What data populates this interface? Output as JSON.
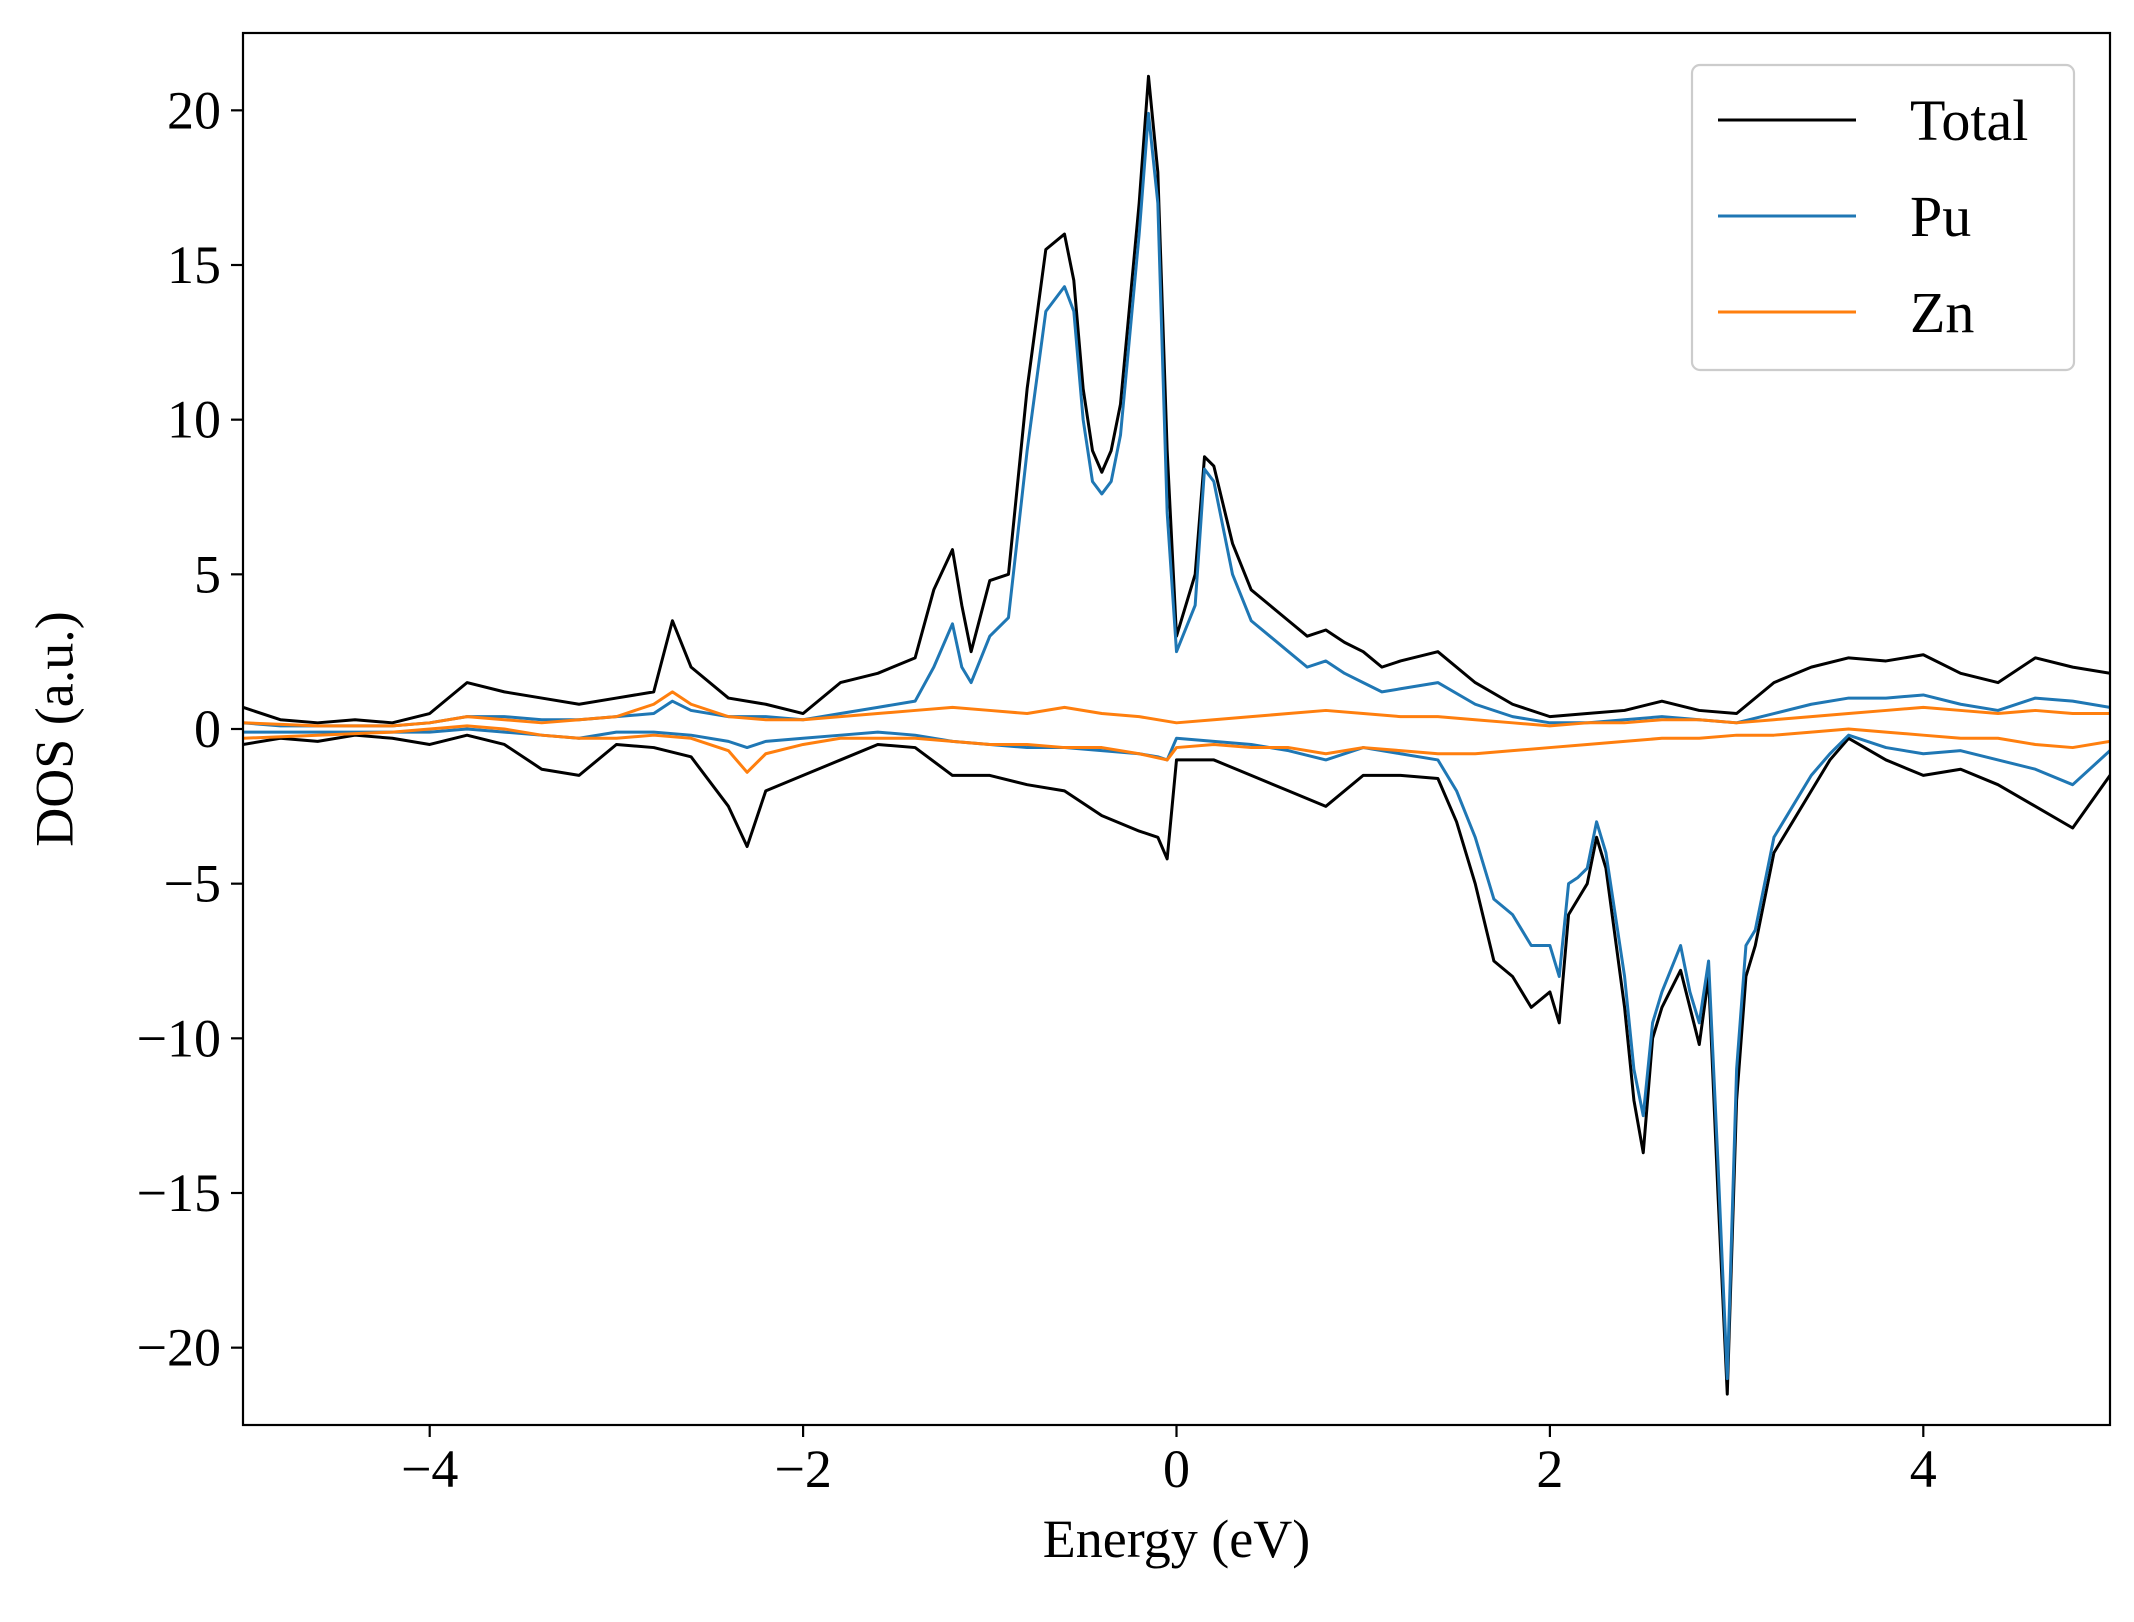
{
  "chart_data": {
    "type": "line",
    "title": "",
    "xlabel": "Energy (eV)",
    "ylabel": "DOS (a.u.)",
    "xlim": [
      -5,
      5
    ],
    "ylim": [
      -22.5,
      22.5
    ],
    "xticks": [
      -4,
      -2,
      0,
      2,
      4
    ],
    "xtick_labels": [
      "−4",
      "−2",
      "0",
      "2",
      "4"
    ],
    "yticks": [
      20,
      15,
      10,
      5,
      0,
      -5,
      -10,
      -15,
      -20
    ],
    "ytick_labels": [
      "20",
      "15",
      "10",
      "5",
      "0",
      "−5",
      "−10",
      "−15",
      "−20"
    ],
    "grid": false,
    "legend_position": "top-right",
    "series": [
      {
        "name": "Total",
        "color": "#000000",
        "up": {
          "x": [
            -5.0,
            -4.8,
            -4.6,
            -4.4,
            -4.2,
            -4.0,
            -3.8,
            -3.6,
            -3.4,
            -3.2,
            -3.0,
            -2.8,
            -2.7,
            -2.6,
            -2.4,
            -2.2,
            -2.0,
            -1.8,
            -1.6,
            -1.4,
            -1.3,
            -1.2,
            -1.15,
            -1.1,
            -1.0,
            -0.9,
            -0.8,
            -0.7,
            -0.6,
            -0.55,
            -0.5,
            -0.45,
            -0.4,
            -0.35,
            -0.3,
            -0.2,
            -0.15,
            -0.1,
            -0.05,
            0.0,
            0.1,
            0.15,
            0.2,
            0.3,
            0.4,
            0.5,
            0.6,
            0.7,
            0.8,
            0.9,
            1.0,
            1.1,
            1.2,
            1.4,
            1.6,
            1.8,
            2.0,
            2.2,
            2.4,
            2.6,
            2.8,
            3.0,
            3.2,
            3.4,
            3.6,
            3.8,
            4.0,
            4.2,
            4.4,
            4.6,
            4.8,
            5.0
          ],
          "y": [
            0.7,
            0.3,
            0.2,
            0.3,
            0.2,
            0.5,
            1.5,
            1.2,
            1.0,
            0.8,
            1.0,
            1.2,
            3.5,
            2.0,
            1.0,
            0.8,
            0.5,
            1.5,
            1.8,
            2.3,
            4.5,
            5.8,
            4.0,
            2.5,
            4.8,
            5.0,
            11.0,
            15.5,
            16.0,
            14.5,
            11.0,
            9.0,
            8.3,
            9.0,
            10.5,
            17.0,
            21.1,
            18.0,
            9.0,
            3.0,
            5.0,
            8.8,
            8.5,
            6.0,
            4.5,
            4.0,
            3.5,
            3.0,
            3.2,
            2.8,
            2.5,
            2.0,
            2.2,
            2.5,
            1.5,
            0.8,
            0.4,
            0.5,
            0.6,
            0.9,
            0.6,
            0.5,
            1.5,
            2.0,
            2.3,
            2.2,
            2.4,
            1.8,
            1.5,
            2.3,
            2.0,
            1.8
          ]
        },
        "down": {
          "x": [
            -5.0,
            -4.8,
            -4.6,
            -4.4,
            -4.2,
            -4.0,
            -3.8,
            -3.6,
            -3.4,
            -3.2,
            -3.0,
            -2.8,
            -2.6,
            -2.4,
            -2.3,
            -2.2,
            -2.0,
            -1.8,
            -1.6,
            -1.4,
            -1.2,
            -1.0,
            -0.8,
            -0.6,
            -0.4,
            -0.2,
            -0.1,
            -0.05,
            0.0,
            0.2,
            0.4,
            0.6,
            0.8,
            1.0,
            1.2,
            1.4,
            1.5,
            1.6,
            1.7,
            1.8,
            1.9,
            2.0,
            2.05,
            2.1,
            2.15,
            2.2,
            2.25,
            2.3,
            2.4,
            2.45,
            2.5,
            2.55,
            2.6,
            2.7,
            2.75,
            2.8,
            2.85,
            2.9,
            2.95,
            3.0,
            3.05,
            3.1,
            3.2,
            3.3,
            3.4,
            3.5,
            3.6,
            3.8,
            4.0,
            4.2,
            4.4,
            4.6,
            4.8,
            5.0
          ],
          "y": [
            -0.5,
            -0.3,
            -0.4,
            -0.2,
            -0.3,
            -0.5,
            -0.2,
            -0.5,
            -1.3,
            -1.5,
            -0.5,
            -0.6,
            -0.9,
            -2.5,
            -3.8,
            -2.0,
            -1.5,
            -1.0,
            -0.5,
            -0.6,
            -1.5,
            -1.5,
            -1.8,
            -2.0,
            -2.8,
            -3.3,
            -3.5,
            -4.2,
            -1.0,
            -1.0,
            -1.5,
            -2.0,
            -2.5,
            -1.5,
            -1.5,
            -1.6,
            -3.0,
            -5.0,
            -7.5,
            -8.0,
            -9.0,
            -8.5,
            -9.5,
            -6.0,
            -5.5,
            -5.0,
            -3.5,
            -4.5,
            -9.0,
            -12.0,
            -13.7,
            -10.0,
            -9.0,
            -7.8,
            -9.0,
            -10.2,
            -8.0,
            -15.0,
            -21.5,
            -12.0,
            -8.0,
            -7.0,
            -4.0,
            -3.0,
            -2.0,
            -1.0,
            -0.3,
            -1.0,
            -1.5,
            -1.3,
            -1.8,
            -2.5,
            -3.2,
            -1.5
          ]
        }
      },
      {
        "name": "Pu",
        "color": "#1f77b4",
        "up": {
          "x": [
            -5.0,
            -4.8,
            -4.6,
            -4.4,
            -4.2,
            -4.0,
            -3.8,
            -3.6,
            -3.4,
            -3.2,
            -3.0,
            -2.8,
            -2.7,
            -2.6,
            -2.4,
            -2.2,
            -2.0,
            -1.8,
            -1.6,
            -1.4,
            -1.3,
            -1.2,
            -1.15,
            -1.1,
            -1.0,
            -0.9,
            -0.8,
            -0.7,
            -0.6,
            -0.55,
            -0.5,
            -0.45,
            -0.4,
            -0.35,
            -0.3,
            -0.2,
            -0.15,
            -0.1,
            -0.05,
            0.0,
            0.1,
            0.15,
            0.2,
            0.3,
            0.4,
            0.5,
            0.6,
            0.7,
            0.8,
            0.9,
            1.0,
            1.1,
            1.2,
            1.4,
            1.6,
            1.8,
            2.0,
            2.2,
            2.4,
            2.6,
            2.8,
            3.0,
            3.2,
            3.4,
            3.6,
            3.8,
            4.0,
            4.2,
            4.4,
            4.6,
            4.8,
            5.0
          ],
          "y": [
            0.2,
            0.1,
            0.1,
            0.1,
            0.1,
            0.2,
            0.4,
            0.4,
            0.3,
            0.3,
            0.4,
            0.5,
            0.9,
            0.6,
            0.4,
            0.4,
            0.3,
            0.5,
            0.7,
            0.9,
            2.0,
            3.4,
            2.0,
            1.5,
            3.0,
            3.6,
            9.0,
            13.5,
            14.3,
            13.5,
            10.0,
            8.0,
            7.6,
            8.0,
            9.5,
            16.0,
            19.9,
            17.0,
            7.0,
            2.5,
            4.0,
            8.4,
            8.0,
            5.0,
            3.5,
            3.0,
            2.5,
            2.0,
            2.2,
            1.8,
            1.5,
            1.2,
            1.3,
            1.5,
            0.8,
            0.4,
            0.2,
            0.2,
            0.3,
            0.4,
            0.3,
            0.2,
            0.5,
            0.8,
            1.0,
            1.0,
            1.1,
            0.8,
            0.6,
            1.0,
            0.9,
            0.7
          ]
        },
        "down": {
          "x": [
            -5.0,
            -4.8,
            -4.6,
            -4.4,
            -4.2,
            -4.0,
            -3.8,
            -3.6,
            -3.4,
            -3.2,
            -3.0,
            -2.8,
            -2.6,
            -2.4,
            -2.3,
            -2.2,
            -2.0,
            -1.8,
            -1.6,
            -1.4,
            -1.2,
            -1.0,
            -0.8,
            -0.6,
            -0.4,
            -0.2,
            -0.1,
            -0.05,
            0.0,
            0.2,
            0.4,
            0.6,
            0.8,
            1.0,
            1.2,
            1.4,
            1.5,
            1.6,
            1.7,
            1.8,
            1.9,
            2.0,
            2.05,
            2.1,
            2.15,
            2.2,
            2.25,
            2.3,
            2.4,
            2.45,
            2.5,
            2.55,
            2.6,
            2.7,
            2.75,
            2.8,
            2.85,
            2.9,
            2.95,
            3.0,
            3.05,
            3.1,
            3.2,
            3.3,
            3.4,
            3.5,
            3.6,
            3.8,
            4.0,
            4.2,
            4.4,
            4.6,
            4.8,
            5.0
          ],
          "y": [
            -0.1,
            -0.1,
            -0.1,
            -0.1,
            -0.1,
            -0.1,
            0.0,
            -0.1,
            -0.2,
            -0.3,
            -0.1,
            -0.1,
            -0.2,
            -0.4,
            -0.6,
            -0.4,
            -0.3,
            -0.2,
            -0.1,
            -0.2,
            -0.4,
            -0.5,
            -0.6,
            -0.6,
            -0.7,
            -0.8,
            -0.9,
            -1.0,
            -0.3,
            -0.4,
            -0.5,
            -0.7,
            -1.0,
            -0.6,
            -0.8,
            -1.0,
            -2.0,
            -3.5,
            -5.5,
            -6.0,
            -7.0,
            -7.0,
            -8.0,
            -5.0,
            -4.8,
            -4.5,
            -3.0,
            -4.0,
            -8.0,
            -11.0,
            -12.5,
            -9.5,
            -8.5,
            -7.0,
            -8.5,
            -9.5,
            -7.5,
            -14.0,
            -21.0,
            -11.0,
            -7.0,
            -6.5,
            -3.5,
            -2.5,
            -1.5,
            -0.8,
            -0.2,
            -0.6,
            -0.8,
            -0.7,
            -1.0,
            -1.3,
            -1.8,
            -0.7
          ]
        }
      },
      {
        "name": "Zn",
        "color": "#ff7f0e",
        "up": {
          "x": [
            -5.0,
            -4.6,
            -4.2,
            -4.0,
            -3.8,
            -3.6,
            -3.4,
            -3.2,
            -3.0,
            -2.8,
            -2.7,
            -2.6,
            -2.4,
            -2.2,
            -2.0,
            -1.8,
            -1.6,
            -1.4,
            -1.2,
            -1.0,
            -0.8,
            -0.6,
            -0.4,
            -0.2,
            0.0,
            0.2,
            0.4,
            0.6,
            0.8,
            1.0,
            1.2,
            1.4,
            1.6,
            1.8,
            2.0,
            2.2,
            2.4,
            2.6,
            2.8,
            3.0,
            3.2,
            3.4,
            3.6,
            3.8,
            4.0,
            4.2,
            4.4,
            4.6,
            4.8,
            5.0
          ],
          "y": [
            0.2,
            0.1,
            0.1,
            0.2,
            0.4,
            0.3,
            0.2,
            0.3,
            0.4,
            0.8,
            1.2,
            0.8,
            0.4,
            0.3,
            0.3,
            0.4,
            0.5,
            0.6,
            0.7,
            0.6,
            0.5,
            0.7,
            0.5,
            0.4,
            0.2,
            0.3,
            0.4,
            0.5,
            0.6,
            0.5,
            0.4,
            0.4,
            0.3,
            0.2,
            0.1,
            0.2,
            0.2,
            0.3,
            0.3,
            0.2,
            0.3,
            0.4,
            0.5,
            0.6,
            0.7,
            0.6,
            0.5,
            0.6,
            0.5,
            0.5
          ]
        },
        "down": {
          "x": [
            -5.0,
            -4.6,
            -4.2,
            -4.0,
            -3.8,
            -3.6,
            -3.4,
            -3.2,
            -3.0,
            -2.8,
            -2.6,
            -2.4,
            -2.3,
            -2.2,
            -2.0,
            -1.8,
            -1.6,
            -1.4,
            -1.2,
            -1.0,
            -0.8,
            -0.6,
            -0.4,
            -0.2,
            -0.05,
            0.0,
            0.2,
            0.4,
            0.6,
            0.8,
            1.0,
            1.2,
            1.4,
            1.6,
            1.8,
            2.0,
            2.2,
            2.4,
            2.6,
            2.8,
            3.0,
            3.2,
            3.4,
            3.6,
            3.8,
            4.0,
            4.2,
            4.4,
            4.6,
            4.8,
            5.0
          ],
          "y": [
            -0.3,
            -0.2,
            -0.1,
            0.0,
            0.1,
            0.0,
            -0.2,
            -0.3,
            -0.3,
            -0.2,
            -0.3,
            -0.7,
            -1.4,
            -0.8,
            -0.5,
            -0.3,
            -0.3,
            -0.3,
            -0.4,
            -0.5,
            -0.5,
            -0.6,
            -0.6,
            -0.8,
            -1.0,
            -0.6,
            -0.5,
            -0.6,
            -0.6,
            -0.8,
            -0.6,
            -0.7,
            -0.8,
            -0.8,
            -0.7,
            -0.6,
            -0.5,
            -0.4,
            -0.3,
            -0.3,
            -0.2,
            -0.2,
            -0.1,
            0.0,
            -0.1,
            -0.2,
            -0.3,
            -0.3,
            -0.5,
            -0.6,
            -0.4
          ]
        }
      }
    ]
  }
}
